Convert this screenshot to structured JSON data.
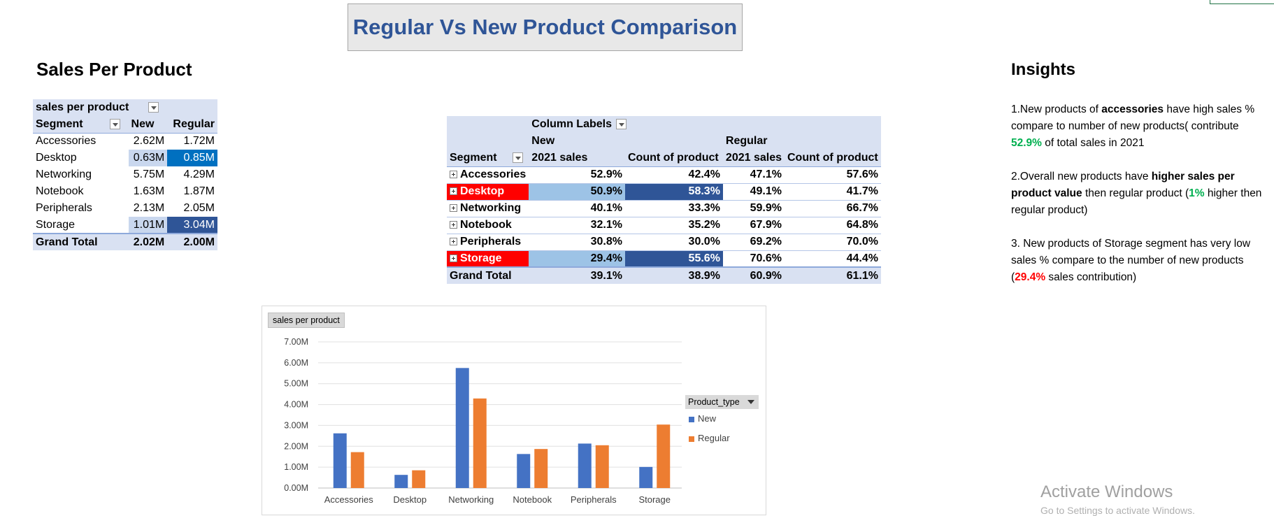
{
  "title": "Regular Vs New Product Comparison",
  "sales_section": {
    "title": "Sales Per Product",
    "pivot": {
      "filter_label": "sales per product",
      "row_header": "Segment",
      "col_new": "New",
      "col_regular": "Regular",
      "rows": [
        {
          "segment": "Accessories",
          "new": "2.62M",
          "regular": "1.72M"
        },
        {
          "segment": "Desktop",
          "new": "0.63M",
          "regular": "0.85M"
        },
        {
          "segment": "Networking",
          "new": "5.75M",
          "regular": "4.29M"
        },
        {
          "segment": "Notebook",
          "new": "1.63M",
          "regular": "1.87M"
        },
        {
          "segment": "Peripherals",
          "new": "2.13M",
          "regular": "2.05M"
        },
        {
          "segment": "Storage",
          "new": "1.01M",
          "regular": "3.04M"
        }
      ],
      "total": {
        "label": "Grand Total",
        "new": "2.02M",
        "regular": "2.00M"
      }
    }
  },
  "comparison_pivot": {
    "column_labels": "Column Labels",
    "group_new": "New",
    "group_regular": "Regular",
    "row_header": "Segment",
    "h_sales_new": "2021 sales",
    "h_count_new": "Count of product",
    "h_sales_reg": "2021 sales",
    "h_count_reg": "Count of product",
    "rows": [
      {
        "segment": "Accessories",
        "new_sales": "52.9%",
        "new_count": "42.4%",
        "reg_sales": "47.1%",
        "reg_count": "57.6%"
      },
      {
        "segment": "Desktop",
        "new_sales": "50.9%",
        "new_count": "58.3%",
        "reg_sales": "49.1%",
        "reg_count": "41.7%"
      },
      {
        "segment": "Networking",
        "new_sales": "40.1%",
        "new_count": "33.3%",
        "reg_sales": "59.9%",
        "reg_count": "66.7%"
      },
      {
        "segment": "Notebook",
        "new_sales": "32.1%",
        "new_count": "35.2%",
        "reg_sales": "67.9%",
        "reg_count": "64.8%"
      },
      {
        "segment": "Peripherals",
        "new_sales": "30.8%",
        "new_count": "30.0%",
        "reg_sales": "69.2%",
        "reg_count": "70.0%"
      },
      {
        "segment": "Storage",
        "new_sales": "29.4%",
        "new_count": "55.6%",
        "reg_sales": "70.6%",
        "reg_count": "44.4%"
      }
    ],
    "total": {
      "label": "Grand Total",
      "new_sales": "39.1%",
      "new_count": "38.9%",
      "reg_sales": "60.9%",
      "reg_count": "61.1%"
    }
  },
  "insights": {
    "title": "Insights",
    "i1": {
      "a": "1.New products of ",
      "b": "accessories",
      "c": " have high sales % compare to number of new products( contribute ",
      "d": "52.9%",
      "e": " of total sales in 2021"
    },
    "i2": {
      "a": "2.Overall new products have ",
      "b": "higher sales per product value",
      "c": " then regular product (",
      "d": "1%",
      "e": " higher then regular product)"
    },
    "i3": {
      "a": "3. New products of Storage segment has very low sales % compare to the number of new products (",
      "b": "29.4%",
      "c": " sales contribution)"
    }
  },
  "chart_data": {
    "type": "bar",
    "filter_label": "sales per product",
    "legend_title": "Product_type",
    "legend_position": "right",
    "categories": [
      "Accessories",
      "Desktop",
      "Networking",
      "Notebook",
      "Peripherals",
      "Storage"
    ],
    "series": [
      {
        "name": "New",
        "color": "#4472c4",
        "values": [
          2.62,
          0.63,
          5.75,
          1.63,
          2.13,
          1.01
        ]
      },
      {
        "name": "Regular",
        "color": "#ed7d31",
        "values": [
          1.72,
          0.85,
          4.29,
          1.87,
          2.05,
          3.04
        ]
      }
    ],
    "y_ticks": [
      "0.00M",
      "1.00M",
      "2.00M",
      "3.00M",
      "4.00M",
      "5.00M",
      "6.00M",
      "7.00M"
    ],
    "ylim": [
      0,
      7
    ],
    "grid": true
  },
  "watermark": {
    "line1": "Activate Windows",
    "line2": "Go to Settings to activate Windows."
  }
}
